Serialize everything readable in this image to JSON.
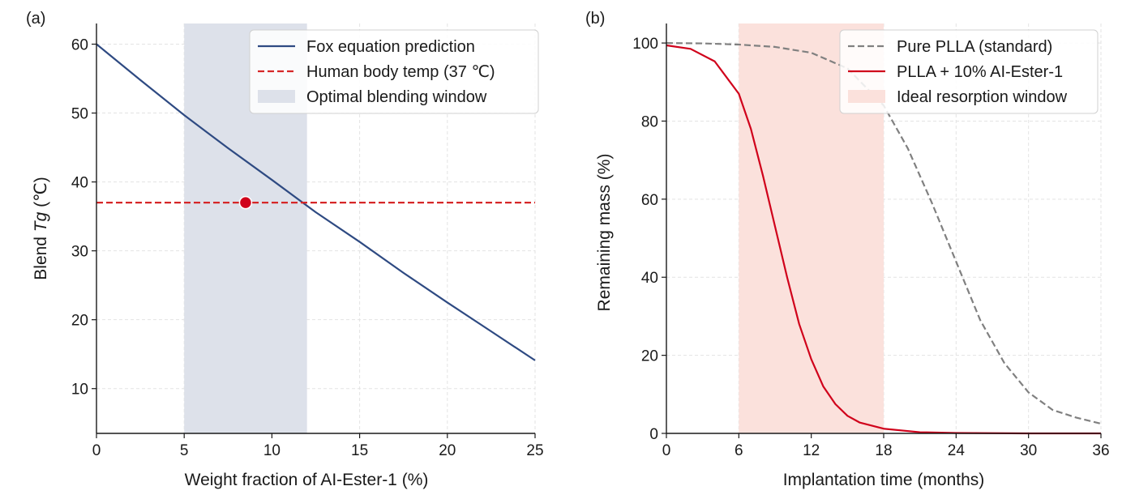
{
  "chart_data": [
    {
      "panel_label": "(a)",
      "type": "line",
      "xlabel": "Weight fraction of AI-Ester-1 (%)",
      "ylabel_prefix": "Blend ",
      "ylabel_symbol": "Tg",
      "ylabel_suffix": " (℃)",
      "xlim": [
        0,
        25
      ],
      "ylim": [
        3.5,
        63
      ],
      "xticks": [
        0,
        5,
        10,
        15,
        20,
        25
      ],
      "yticks": [
        10,
        20,
        30,
        40,
        50,
        60
      ],
      "grid": true,
      "legend_position": "top-right",
      "series": [
        {
          "name": "Fox equation prediction",
          "style": "solid",
          "color": "#2e4a82",
          "x": [
            0,
            2.5,
            5,
            7.5,
            10,
            12.5,
            15,
            17.5,
            20,
            22.5,
            25
          ],
          "y": [
            60,
            54.8,
            49.7,
            44.9,
            40.3,
            35.6,
            31.3,
            26.8,
            22.5,
            18.3,
            14.1
          ]
        },
        {
          "name": "Human body temp (37 ℃)",
          "style": "dashed",
          "color": "#d62728",
          "x": [
            0,
            25
          ],
          "y": [
            37,
            37
          ]
        }
      ],
      "band": {
        "name": "Optimal blending window",
        "x0": 5,
        "x1": 12,
        "color": "#dde1ea"
      },
      "marker": {
        "x": 8.5,
        "y": 37,
        "color": "#d0021b"
      }
    },
    {
      "panel_label": "(b)",
      "type": "line",
      "xlabel": "Implantation time (months)",
      "ylabel": "Remaining mass (%)",
      "xlim": [
        0,
        36
      ],
      "ylim": [
        0,
        105
      ],
      "xticks": [
        0,
        6,
        12,
        18,
        24,
        30,
        36
      ],
      "yticks": [
        0,
        20,
        40,
        60,
        80,
        100
      ],
      "grid": true,
      "legend_position": "top-right",
      "series": [
        {
          "name": "Pure PLLA (standard)",
          "style": "dashed",
          "color": "#808080",
          "x": [
            0,
            3,
            6,
            9,
            12,
            15,
            18,
            20,
            22,
            24,
            26,
            28,
            30,
            32,
            34,
            36
          ],
          "y": [
            100,
            99.9,
            99.6,
            99,
            97.5,
            93.5,
            84,
            73,
            59,
            44,
            29,
            18,
            10.5,
            6,
            4,
            2.5
          ]
        },
        {
          "name": "PLLA + 10% AI-Ester-1",
          "style": "solid",
          "color": "#d0021b",
          "x": [
            0,
            2,
            4,
            6,
            7,
            8,
            9,
            10,
            11,
            12,
            13,
            14,
            15,
            16,
            18,
            21,
            24,
            30,
            36
          ],
          "y": [
            99.4,
            98.5,
            95.3,
            87,
            78,
            66,
            53,
            40,
            28,
            19,
            12,
            7.5,
            4.5,
            2.8,
            1.2,
            0.3,
            0.1,
            0,
            0
          ]
        }
      ],
      "band": {
        "name": "Ideal resorption window",
        "x0": 6,
        "x1": 18,
        "color": "#fbe1dc"
      }
    }
  ]
}
